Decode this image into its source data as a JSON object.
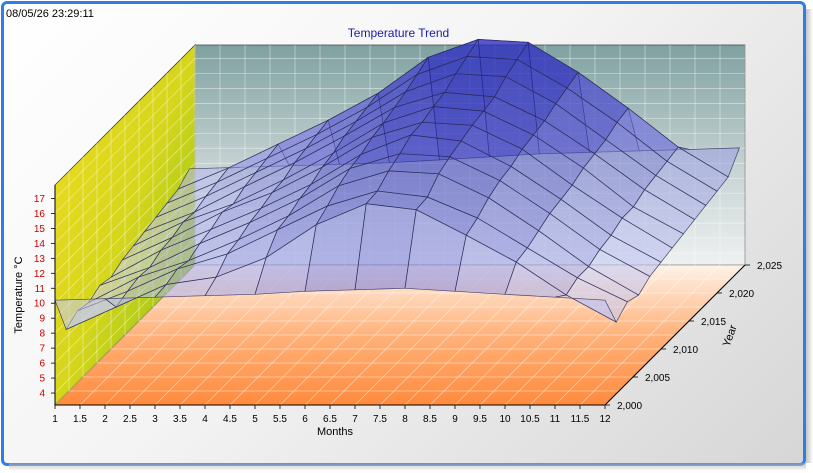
{
  "timestamp": "08/05/26 23:29:11",
  "chart_data": {
    "type": "surface-3d",
    "title": "Temperature Trend",
    "xlabel": "Months",
    "ylabel": "Temperature °C",
    "zlabel": "Year",
    "x_ticks": [
      "1",
      "1.5",
      "2",
      "2.5",
      "3",
      "3.5",
      "4",
      "4.5",
      "5",
      "5.5",
      "6",
      "6.5",
      "7",
      "7.5",
      "8",
      "8.5",
      "9",
      "9.5",
      "10",
      "10.5",
      "11",
      "11.5",
      "12"
    ],
    "y_ticks": [
      "4",
      "5",
      "6",
      "7",
      "8",
      "9",
      "10",
      "11",
      "12",
      "13",
      "14",
      "15",
      "16",
      "17"
    ],
    "z_ticks": [
      "2,000",
      "2,005",
      "2,010",
      "2,015",
      "2,020",
      "2,025"
    ],
    "xlim": [
      1,
      12
    ],
    "ylim": [
      3.2,
      17.9
    ],
    "zlim": [
      2000,
      2025
    ],
    "x": [
      1,
      2,
      3,
      4,
      5,
      6,
      7,
      8,
      9,
      10,
      11,
      12
    ],
    "series": [
      {
        "year": 2000,
        "values": [
          10.2,
          10.3,
          10.4,
          10.5,
          10.6,
          10.8,
          10.9,
          11.0,
          10.8,
          10.6,
          10.4,
          10.2
        ]
      },
      {
        "year": 2002,
        "values": [
          7.5,
          9.0,
          10.5,
          11.0,
          12.3,
          14.5,
          15.9,
          15.5,
          13.8,
          12.0,
          9.8,
          8.0
        ]
      },
      {
        "year": 2004,
        "values": [
          8.0,
          9.3,
          10.8,
          11.8,
          13.4,
          15.0,
          16.0,
          15.6,
          14.2,
          12.2,
          10.2,
          8.6
        ]
      },
      {
        "year": 2006,
        "values": [
          7.8,
          9.5,
          10.6,
          12.0,
          13.6,
          15.6,
          16.6,
          16.4,
          14.8,
          12.6,
          10.2,
          8.3
        ]
      },
      {
        "year": 2008,
        "values": [
          8.2,
          9.4,
          11.0,
          12.4,
          14.0,
          16.0,
          17.0,
          16.8,
          15.2,
          13.0,
          10.6,
          8.8
        ]
      },
      {
        "year": 2010,
        "values": [
          8.0,
          9.8,
          11.2,
          12.6,
          14.2,
          16.2,
          17.5,
          17.1,
          15.4,
          13.2,
          10.8,
          9.0
        ]
      },
      {
        "year": 2012,
        "values": [
          8.4,
          9.9,
          11.6,
          12.9,
          14.6,
          16.6,
          17.6,
          17.4,
          15.8,
          13.4,
          11.2,
          9.2
        ]
      },
      {
        "year": 2014,
        "values": [
          8.6,
          10.2,
          11.4,
          13.0,
          14.8,
          16.8,
          17.9,
          17.6,
          16.0,
          13.8,
          11.2,
          9.4
        ]
      },
      {
        "year": 2016,
        "values": [
          8.8,
          10.1,
          11.8,
          13.4,
          15.2,
          17.1,
          18.1,
          17.8,
          16.2,
          14.0,
          11.6,
          9.6
        ]
      },
      {
        "year": 2018,
        "values": [
          9.0,
          10.4,
          12.0,
          13.6,
          15.4,
          17.4,
          18.6,
          18.4,
          16.6,
          14.2,
          11.8,
          9.8
        ]
      },
      {
        "year": 2020,
        "values": [
          9.2,
          10.6,
          12.2,
          13.8,
          15.6,
          17.8,
          19.0,
          18.8,
          16.9,
          14.6,
          12.0,
          10.0
        ]
      },
      {
        "year": 2022,
        "values": [
          9.4,
          10.8,
          12.4,
          14.0,
          15.8,
          18.2,
          19.4,
          19.2,
          17.2,
          14.8,
          12.2,
          10.2
        ]
      },
      {
        "year": 2024,
        "values": [
          10.0,
          10.1,
          10.2,
          10.3,
          10.4,
          10.6,
          10.8,
          11.0,
          11.1,
          11.2,
          11.3,
          11.4
        ]
      }
    ]
  }
}
